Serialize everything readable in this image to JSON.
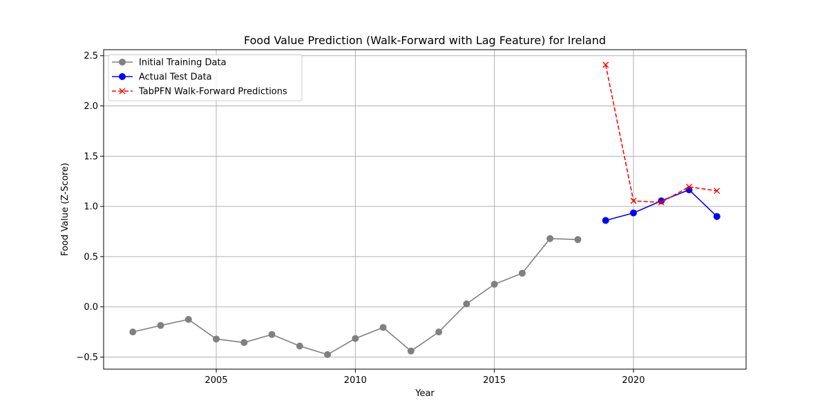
{
  "chart_data": {
    "type": "line",
    "title": "Food Value Prediction (Walk-Forward with Lag Feature) for Ireland",
    "xlabel": "Year",
    "ylabel": "Food Value (Z-Score)",
    "xlim": [
      2000.95,
      2024.05
    ],
    "ylim": [
      -0.62,
      2.56
    ],
    "xticks": [
      2005,
      2010,
      2015,
      2020
    ],
    "yticks": [
      -0.5,
      0.0,
      0.5,
      1.0,
      1.5,
      2.0,
      2.5
    ],
    "grid": true,
    "legend_position": "top-left",
    "series": [
      {
        "name": "Initial Training Data",
        "color": "#808080",
        "marker": "circle",
        "linestyle": "solid",
        "x": [
          2002,
          2003,
          2004,
          2005,
          2006,
          2007,
          2008,
          2009,
          2010,
          2011,
          2012,
          2013,
          2014,
          2015,
          2016,
          2017,
          2018
        ],
        "y": [
          -0.25,
          -0.185,
          -0.125,
          -0.32,
          -0.355,
          -0.275,
          -0.39,
          -0.475,
          -0.315,
          -0.205,
          -0.44,
          -0.25,
          0.03,
          0.225,
          0.335,
          0.68,
          0.67
        ]
      },
      {
        "name": "Actual Test Data",
        "color": "#0000ff",
        "marker": "circle",
        "linestyle": "solid",
        "x": [
          2019,
          2020,
          2021,
          2022,
          2023
        ],
        "y": [
          0.86,
          0.935,
          1.055,
          1.165,
          0.9
        ]
      },
      {
        "name": "TabPFN Walk-Forward Predictions",
        "color": "#ff0000",
        "marker": "x",
        "linestyle": "dashed",
        "x": [
          2019,
          2020,
          2021,
          2022,
          2023
        ],
        "y": [
          2.41,
          1.055,
          1.04,
          1.195,
          1.155
        ]
      }
    ]
  }
}
